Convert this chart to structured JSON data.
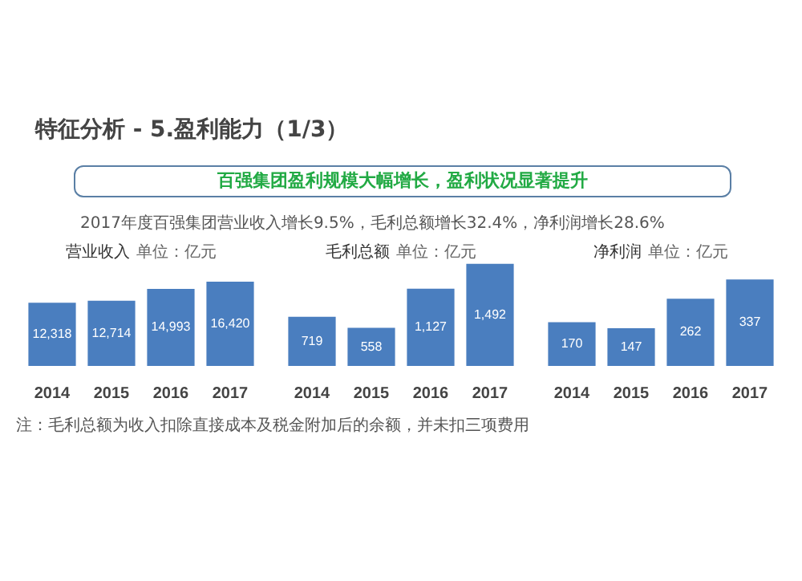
{
  "chart_data": [
    {
      "type": "other",
      "title": "特征分析 - 5.盈利能力（1/3）",
      "subtitle": "百强集团盈利规模大幅增长，盈利状况显著提升",
      "annotations": [
        "2017年度百强集团营业收入增长9.5%，毛利总额增长32.4%，净利润增长28.6%",
        "注：毛利总额为收入扣除直接成本及税金附加后的余额，并未扣三项费用"
      ]
    },
    {
      "type": "bar",
      "title": "营业收入",
      "subtitle": "单位：亿元",
      "categories": [
        "2014",
        "2015",
        "2016",
        "2017"
      ],
      "values": [
        12318,
        12714,
        14993,
        16420
      ],
      "value_labels": [
        "12,318",
        "12,714",
        "14,993",
        "16,420"
      ],
      "color": "#4a7ebf"
    },
    {
      "type": "bar",
      "title": "毛利总额",
      "subtitle": "单位：亿元",
      "categories": [
        "2014",
        "2015",
        "2016",
        "2017"
      ],
      "values": [
        719,
        558,
        1127,
        1492
      ],
      "value_labels": [
        "719",
        "558",
        "1,127",
        "1,492"
      ],
      "color": "#4a7ebf"
    },
    {
      "type": "bar",
      "title": "净利润",
      "subtitle": "单位：亿元",
      "categories": [
        "2014",
        "2015",
        "2016",
        "2017"
      ],
      "values": [
        170,
        147,
        262,
        337
      ],
      "value_labels": [
        "170",
        "147",
        "262",
        "337"
      ],
      "color": "#4a7ebf"
    }
  ]
}
